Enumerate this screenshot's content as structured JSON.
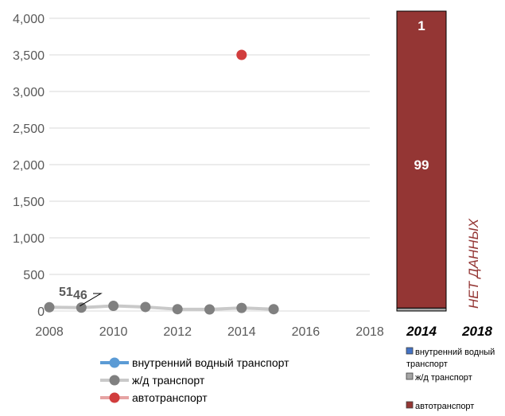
{
  "chart_data": [
    {
      "type": "line",
      "x": [
        2008,
        2009,
        2010,
        2011,
        2012,
        2013,
        2014,
        2015
      ],
      "series": [
        {
          "name": "внутренний водный транспорт",
          "color": "#5b9bd5",
          "values": [
            null,
            null,
            null,
            null,
            null,
            null,
            null,
            null
          ]
        },
        {
          "name": "ж/д транспорт",
          "color": "#808080",
          "line_color": "#c9c9c9",
          "values": [
            51,
            46,
            70,
            55,
            25,
            22,
            42,
            25
          ]
        },
        {
          "name": "автотранспорт",
          "color": "#d13d3d",
          "line_color": "#e6a3a3",
          "values": [
            null,
            null,
            null,
            null,
            null,
            null,
            3500,
            null
          ]
        }
      ],
      "xlim": [
        2008,
        2018
      ],
      "ylim": [
        0,
        4000
      ],
      "xticks": [
        "2008",
        "2010",
        "2012",
        "2014",
        "2016",
        "2018"
      ],
      "yticks": [
        "0",
        "500",
        "1,000",
        "1,500",
        "2,000",
        "2,500",
        "3,000",
        "3,500",
        "4,000"
      ],
      "data_labels": [
        {
          "series": "ж/д транспорт",
          "x": 2008,
          "text": "51"
        },
        {
          "series": "ж/д транспорт",
          "x": 2009,
          "text": "46"
        }
      ],
      "grid": true,
      "legend_position": "bottom"
    },
    {
      "type": "bar",
      "stacked": true,
      "percent": true,
      "categories": [
        "2014",
        "2018"
      ],
      "series": [
        {
          "name": "внутренний водный транспорт",
          "color": "#4472c4",
          "values": [
            0,
            null
          ]
        },
        {
          "name": "ж/д транспорт",
          "color": "#a5a5a5",
          "values": [
            1,
            null
          ]
        },
        {
          "name": "автотранспорт",
          "color": "#943634",
          "values": [
            99,
            null
          ]
        }
      ],
      "segment_labels": [
        "1",
        "99"
      ],
      "no_data_label": "НЕТ ДАННЫХ",
      "legend_position": "bottom"
    }
  ]
}
